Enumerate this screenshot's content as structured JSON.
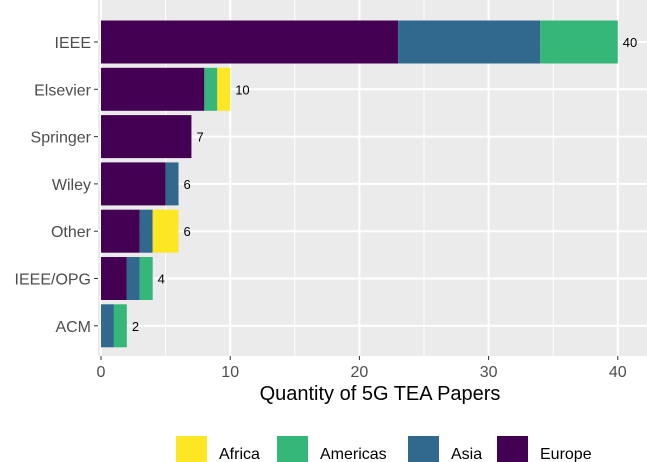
{
  "chart_data": {
    "type": "bar",
    "orientation": "horizontal",
    "stacked": true,
    "title": "",
    "xlabel": "Quantity of 5G TEA Papers",
    "ylabel": "",
    "xlim": [
      0,
      41
    ],
    "x_ticks": [
      0,
      10,
      20,
      30,
      40
    ],
    "grid": true,
    "legend_position": "bottom",
    "categories": [
      "IEEE",
      "Elsevier",
      "Springer",
      "Wiley",
      "Other",
      "IEEE/OPG",
      "ACM"
    ],
    "totals": [
      40,
      10,
      7,
      6,
      6,
      4,
      2
    ],
    "series": [
      {
        "name": "Europe",
        "color": "#440154",
        "values": [
          23,
          8,
          7,
          5,
          3,
          2,
          0
        ]
      },
      {
        "name": "Asia",
        "color": "#31688e",
        "values": [
          11,
          0,
          0,
          1,
          1,
          1,
          1
        ]
      },
      {
        "name": "Americas",
        "color": "#35b779",
        "values": [
          6,
          1,
          0,
          0,
          0,
          1,
          1
        ]
      },
      {
        "name": "Africa",
        "color": "#fde725",
        "values": [
          0,
          1,
          0,
          0,
          2,
          0,
          0
        ]
      }
    ],
    "legend_order": [
      "Africa",
      "Americas",
      "Asia",
      "Europe"
    ]
  },
  "colors": {
    "panel_background": "#ebebeb",
    "grid": "#ffffff"
  }
}
